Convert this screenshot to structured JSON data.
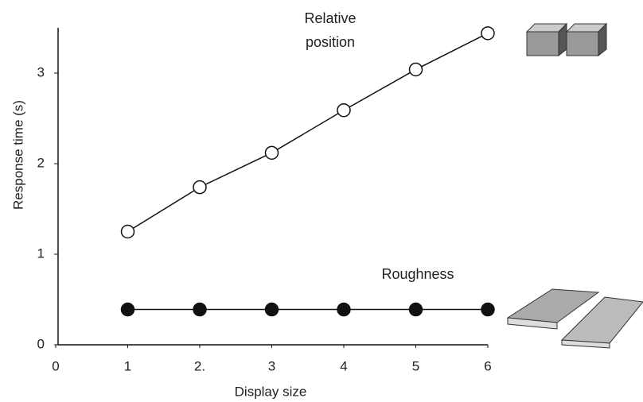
{
  "chart_data": {
    "type": "line",
    "x_label": "Display size",
    "y_label": "Response time (s)",
    "x": [
      1,
      2,
      3,
      4,
      5,
      6
    ],
    "series": [
      {
        "name": "Relative position",
        "color": "#111111",
        "marker": "open",
        "values": [
          1.25,
          1.74,
          2.12,
          2.59,
          3.04,
          3.44
        ]
      },
      {
        "name": "Roughness",
        "color": "#111111",
        "marker": "filled",
        "values": [
          0.39,
          0.39,
          0.39,
          0.39,
          0.39,
          0.39
        ]
      }
    ],
    "xlim": [
      0,
      6
    ],
    "ylim": [
      0,
      3.5
    ],
    "xticks": [
      0,
      1,
      {
        "value": 2,
        "label": "2."
      },
      3,
      4,
      5,
      6
    ],
    "yticks": [
      0,
      1,
      2,
      3
    ]
  }
}
